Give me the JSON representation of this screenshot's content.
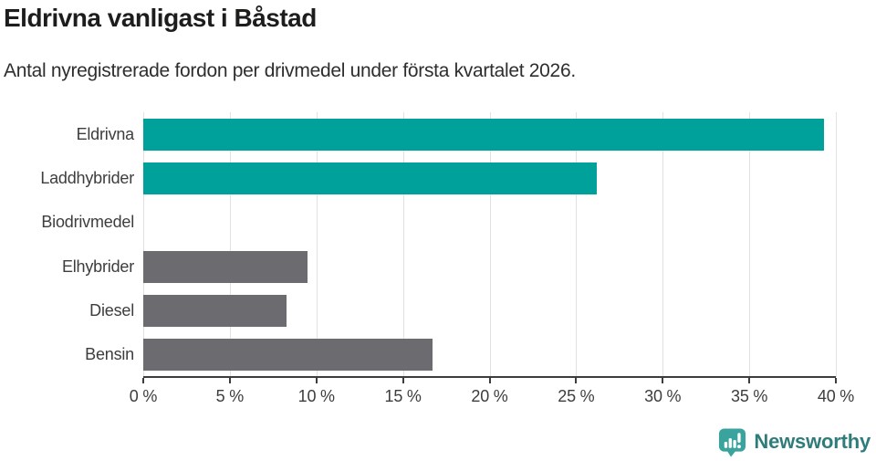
{
  "header": {
    "title": "Eldrivna vanligast i Båstad",
    "subtitle": "Antal nyregistrerade fordon per drivmedel under första kvartalet 2026."
  },
  "chart_data": {
    "type": "bar",
    "orientation": "horizontal",
    "categories": [
      "Eldrivna",
      "Laddhybrider",
      "Biodrivmedel",
      "Elhybrider",
      "Diesel",
      "Bensin"
    ],
    "values": [
      39.3,
      26.2,
      0,
      9.5,
      8.3,
      16.7
    ],
    "unit": "%",
    "bar_colors": [
      "#00a09b",
      "#00a09b",
      "#00a09b",
      "#6b6b70",
      "#6b6b70",
      "#6b6b70"
    ],
    "title": "Eldrivna vanligast i Båstad",
    "subtitle": "Antal nyregistrerade fordon per drivmedel under första kvartalet 2026.",
    "xlabel": "",
    "ylabel": "",
    "xlim": [
      0,
      40
    ],
    "x_ticks": [
      0,
      5,
      10,
      15,
      20,
      25,
      30,
      35,
      40
    ],
    "x_tick_labels": [
      "0 %",
      "5 %",
      "10 %",
      "15 %",
      "20 %",
      "25 %",
      "30 %",
      "35 %",
      "40 %"
    ],
    "grid": "vertical",
    "legend": "none"
  },
  "footer": {
    "brand": "Newsworthy"
  },
  "colors": {
    "teal": "#00a09b",
    "gray": "#6b6b70",
    "gridline": "#e1e1e1",
    "axis": "#3d3d3d",
    "title_text": "#1d1d1b",
    "body_text": "#3d3d3d",
    "brand_text": "#2f7d7b",
    "brand_icon": "#3ba39d"
  }
}
